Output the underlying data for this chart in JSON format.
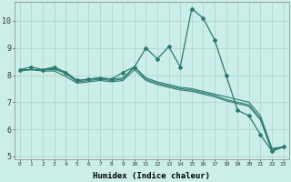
{
  "xlabel": "Humidex (Indice chaleur)",
  "x": [
    0,
    1,
    2,
    3,
    4,
    5,
    6,
    7,
    8,
    9,
    10,
    11,
    12,
    13,
    14,
    15,
    16,
    17,
    18,
    19,
    20,
    21,
    22,
    23
  ],
  "line1": [
    8.2,
    8.3,
    8.2,
    8.3,
    8.1,
    7.8,
    7.85,
    7.9,
    7.85,
    8.1,
    8.3,
    9.0,
    8.6,
    9.05,
    8.3,
    10.45,
    10.1,
    9.3,
    8.0,
    6.7,
    6.5,
    5.8,
    5.2,
    5.35
  ],
  "line2": [
    8.2,
    8.2,
    8.2,
    8.25,
    8.05,
    7.75,
    7.8,
    7.85,
    7.8,
    7.85,
    8.3,
    7.85,
    7.7,
    7.6,
    7.5,
    7.45,
    7.35,
    7.25,
    7.1,
    7.0,
    6.9,
    6.4,
    5.25,
    5.35
  ],
  "line3": [
    8.15,
    8.2,
    8.15,
    8.15,
    7.95,
    7.7,
    7.75,
    7.8,
    7.75,
    7.8,
    8.2,
    7.8,
    7.65,
    7.55,
    7.45,
    7.4,
    7.3,
    7.2,
    7.05,
    6.95,
    6.85,
    6.35,
    5.2,
    5.35
  ],
  "line4": [
    8.2,
    8.2,
    8.2,
    8.2,
    8.1,
    7.8,
    7.85,
    7.9,
    7.85,
    7.9,
    8.3,
    7.9,
    7.75,
    7.65,
    7.55,
    7.5,
    7.4,
    7.3,
    7.2,
    7.1,
    7.0,
    6.5,
    5.3,
    5.35
  ],
  "color": "#2a7a6f",
  "bg_color": "#cceee8",
  "grid_color": "#b0d8d0",
  "ylim": [
    4.9,
    10.7
  ],
  "yticks": [
    5,
    6,
    7,
    8,
    9,
    10
  ],
  "xlim": [
    -0.5,
    23.5
  ]
}
